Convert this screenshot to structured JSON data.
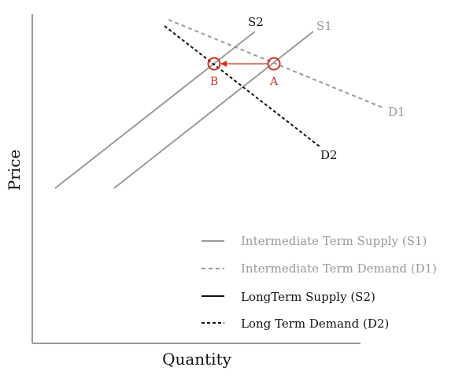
{
  "axes": {
    "x_label": "Quantity",
    "y_label": "Price"
  },
  "colors": {
    "axis": "#9a9a9a",
    "intermediate": "#9a9a9a",
    "long_term": "#111111",
    "highlight": "#cc3322"
  },
  "curves": {
    "s1": {
      "label": "S1"
    },
    "s2": {
      "label": "S2"
    },
    "d1": {
      "label": "D1"
    },
    "d2": {
      "label": "D2"
    }
  },
  "points": {
    "a": {
      "label": "A"
    },
    "b": {
      "label": "B"
    }
  },
  "legend": [
    {
      "label": "Intermediate Term Supply (S1)",
      "style": "solid",
      "color": "#9a9a9a"
    },
    {
      "label": "Intermediate Term Demand (D1)",
      "style": "dashed",
      "color": "#9a9a9a"
    },
    {
      "label": "LongTerm Supply (S2)",
      "style": "solid",
      "color": "#111111"
    },
    {
      "label": "Long Term Demand (D2)",
      "style": "dashed",
      "color": "#111111"
    }
  ]
}
